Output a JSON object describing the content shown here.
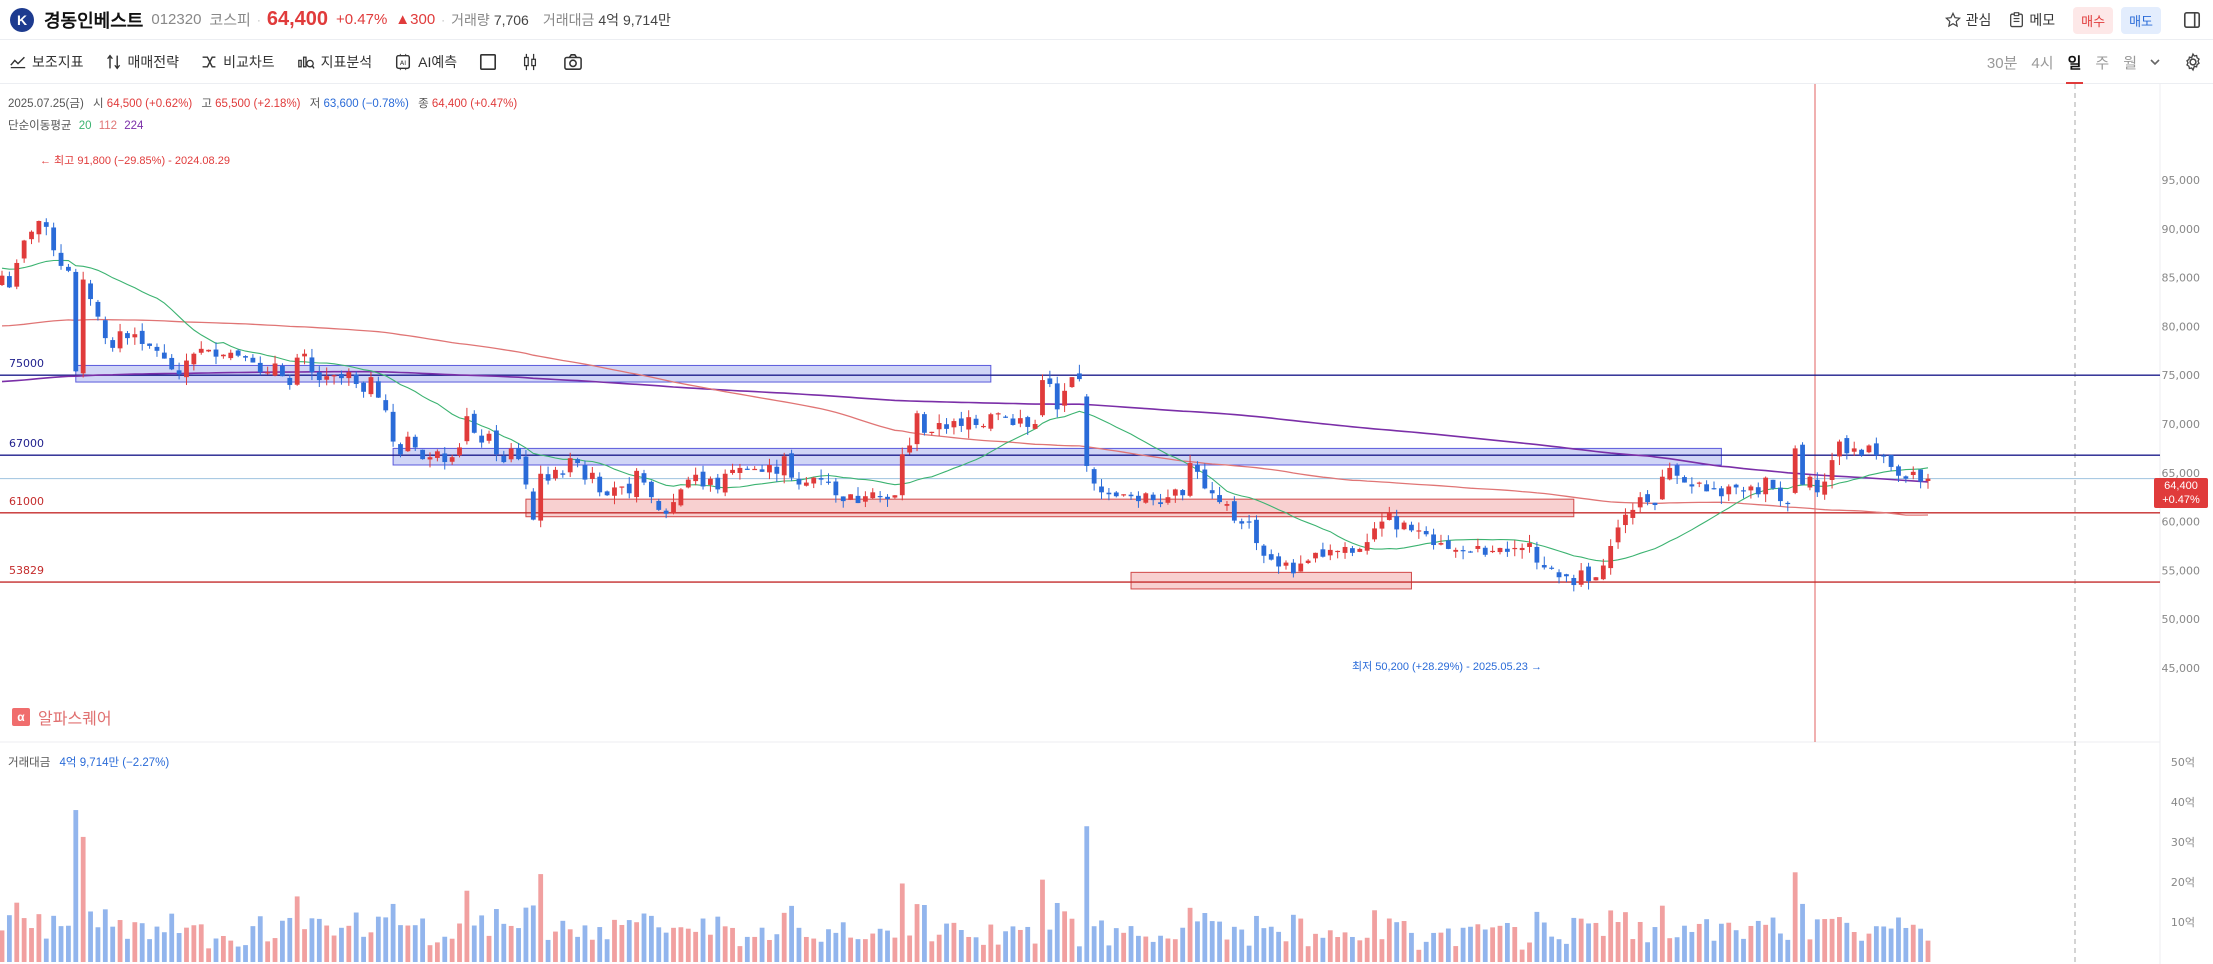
{
  "header": {
    "logo": "K",
    "name": "경동인베스트",
    "code": "012320",
    "market": "코스피",
    "price": "64,400",
    "change_pct": "+0.47%",
    "change": "▲300",
    "volume_label": "거래량",
    "volume": "7,706",
    "amount_label": "거래대금",
    "amount": "4억 9,714만",
    "watch_label": "관심",
    "memo_label": "메모",
    "buy_label": "매수",
    "sell_label": "매도"
  },
  "toolbar": {
    "indicator_label": "보조지표",
    "strategy_label": "매매전략",
    "compare_label": "비교차트",
    "analysis_label": "지표분석",
    "ai_label": "AI예측",
    "periods": [
      "30분",
      "4시",
      "일",
      "주",
      "월"
    ],
    "active_period": "일"
  },
  "info": {
    "date": "2025.07.25(금)",
    "open_label": "시",
    "open": "64,500 (+0.62%)",
    "high_label": "고",
    "high": "65,500 (+2.18%)",
    "low_label": "저",
    "low": "63,600 (−0.78%)",
    "close_label": "종",
    "close": "64,400 (+0.47%)",
    "ma_label": "단순이동평균",
    "ma_periods": [
      "20",
      "112",
      "224"
    ]
  },
  "annotations": {
    "high": "← 최고 91,800 (−29.85%) - 2024.08.29",
    "low": "최저 50,200 (+28.29%) - 2025.05.23 →"
  },
  "current_price_tag": {
    "price": "64,400",
    "pct": "+0.47%"
  },
  "volume_panel": {
    "label": "거래대금",
    "value": "4억 9,714만 (−2.27%)"
  },
  "alpha_label": "알파스퀘어",
  "colors": {
    "up": "#e03b3b",
    "down": "#2a6bd8",
    "ma20": "#3cb371",
    "ma112": "#e07575",
    "ma224": "#7b2fa8",
    "line_blue": "#1e1e8c",
    "line_red": "#c42b2b"
  },
  "chart_data": {
    "type": "candlestick",
    "price_axis": [
      "95,000",
      "90,000",
      "85,000",
      "80,000",
      "75,000",
      "70,000",
      "65,000",
      "60,000",
      "55,000",
      "50,000",
      "45,000"
    ],
    "volume_axis": [
      "50억",
      "40억",
      "30억",
      "20억",
      "10억"
    ],
    "horizontal_lines": [
      {
        "label": "75000",
        "value": 75000,
        "color": "#1e1e8c"
      },
      {
        "label": "67000",
        "value": 66800,
        "color": "#1e1e8c"
      },
      {
        "label": "61000",
        "value": 60900,
        "color": "#c42b2b"
      },
      {
        "label": "53829",
        "value": 53800,
        "color": "#c42b2b"
      }
    ],
    "zones": [
      {
        "from": 10,
        "to": 134,
        "low": 74300,
        "high": 76000,
        "color": "blue"
      },
      {
        "from": 53,
        "to": 233,
        "low": 65800,
        "high": 67500,
        "color": "blue"
      },
      {
        "from": 71,
        "to": 213,
        "low": 60500,
        "high": 62300,
        "color": "red"
      },
      {
        "from": 153,
        "to": 191,
        "low": 53100,
        "high": 54800,
        "color": "red"
      }
    ],
    "closes": [
      85200,
      84000,
      86500,
      88800,
      89700,
      90800,
      90200,
      87800,
      86200,
      85700,
      75400,
      84800,
      82800,
      81000,
      78800,
      77800,
      79500,
      78800,
      79200,
      78200,
      78000,
      77500,
      76700,
      75600,
      75100,
      76500,
      77200,
      77700,
      77600,
      76900,
      77100,
      77300,
      77000,
      76800,
      76300,
      75300,
      75300,
      76200,
      74900,
      74000,
      76800,
      77200,
      75300,
      74500,
      74900,
      75000,
      74700,
      75300,
      74100,
      73300,
      74800,
      72700,
      71400,
      68200,
      66900,
      68700,
      67600,
      66400,
      66600,
      67200,
      66100,
      66600,
      67600,
      70800,
      69100,
      68100,
      69000,
      66900,
      66100,
      67500,
      66400,
      63800,
      60200,
      64900,
      64200,
      65300,
      64800,
      66500,
      66000,
      64300,
      65000,
      63000,
      62700,
      63500,
      63600,
      62900,
      65200,
      64000,
      62500,
      61200,
      60800,
      62000,
      63300,
      64300,
      64800,
      63600,
      64400,
      63300,
      64900,
      65300,
      65500,
      65300,
      65400,
      65100,
      65800,
      64900,
      66700,
      64500,
      63800,
      64000,
      64500,
      64300,
      64000,
      62700,
      62100,
      62800,
      61900,
      62600,
      63000,
      62600,
      62300,
      62700,
      66900,
      67800,
      71100,
      69100,
      69200,
      70100,
      69500,
      70300,
      69800,
      70700,
      69900,
      69800,
      71000,
      71100,
      70700,
      69900,
      70600,
      69700,
      70000,
      74500,
      74100,
      71500,
      73400,
      74800,
      74600,
      65700,
      63900,
      63000,
      62800,
      62600,
      62800,
      62600,
      62100,
      62900,
      62200,
      61800,
      62500,
      63300,
      62700,
      66000,
      65100,
      63400,
      62900,
      62000,
      61800,
      60100,
      59800,
      59900,
      57800,
      56500,
      56100,
      55400,
      55800,
      54700,
      55700,
      56000,
      56800,
      56400,
      57100,
      57000,
      57400,
      56800,
      57200,
      57900,
      59300,
      60000,
      60900,
      59200,
      59900,
      59100,
      59100,
      58700,
      57600,
      57800,
      57200,
      57100,
      57000,
      56900,
      57500,
      56600,
      57000,
      57300,
      56900,
      57300,
      57300,
      57800,
      55800,
      55300,
      55200,
      54300,
      54400,
      53500,
      55000,
      53900,
      54300,
      55500,
      57500,
      59400,
      60700,
      61200,
      62500,
      62000,
      61700,
      64600,
      65500,
      64700,
      64000,
      63600,
      64000,
      63100,
      63400,
      62600,
      63600,
      63500,
      63100,
      63600,
      62800,
      64500,
      63400,
      62100,
      61800,
      67500,
      63800,
      64600,
      63000,
      64100,
      66300,
      68200,
      67000,
      67500,
      66800,
      67800,
      66800,
      66700,
      65600,
      64700,
      64400,
      65100,
      64100,
      64400
    ],
    "volume_scale_max": 55
  }
}
